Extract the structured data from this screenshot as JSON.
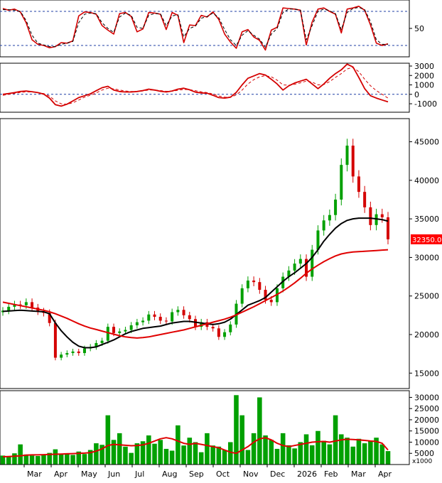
{
  "chart_data": [
    {
      "type": "line",
      "panel": "oscillator",
      "ylim": [
        0,
        100
      ],
      "ytick_labels": [
        "50"
      ],
      "ytick_values": [
        50
      ],
      "reference_lines": [
        80,
        20
      ],
      "series": [
        {
          "color": "#d40000",
          "values": [
            85,
            82,
            84,
            79,
            60,
            30,
            22,
            20,
            16,
            18,
            25,
            24,
            28,
            72,
            79,
            78,
            75,
            55,
            47,
            40,
            76,
            78,
            71,
            44,
            49,
            78,
            77,
            75,
            48,
            78,
            73,
            25,
            56,
            55,
            73,
            70,
            79,
            66,
            40,
            26,
            15,
            44,
            48,
            35,
            29,
            12,
            47,
            52,
            86,
            85,
            84,
            82,
            21,
            61,
            84,
            86,
            80,
            75,
            42,
            84,
            86,
            89,
            82,
            56,
            24,
            20,
            23
          ]
        },
        {
          "color": "#000000",
          "dashed": true,
          "values": [
            83,
            83,
            82,
            80,
            64,
            38,
            24,
            21,
            18,
            18,
            22,
            24,
            27,
            60,
            75,
            77,
            76,
            60,
            50,
            43,
            70,
            77,
            73,
            52,
            50,
            73,
            76,
            76,
            55,
            72,
            74,
            35,
            50,
            54,
            68,
            71,
            77,
            69,
            48,
            30,
            20,
            38,
            46,
            38,
            31,
            17,
            40,
            50,
            78,
            84,
            84,
            82,
            30,
            55,
            80,
            84,
            81,
            76,
            48,
            78,
            85,
            87,
            83,
            62,
            30,
            22,
            22
          ]
        }
      ]
    },
    {
      "type": "line",
      "panel": "macd",
      "ylim": [
        -1900,
        3300
      ],
      "ytick_labels": [
        "3000",
        "2000",
        "1000",
        "0",
        "-1000"
      ],
      "ytick_values": [
        3000,
        2000,
        1000,
        0,
        -1000
      ],
      "reference_lines": [
        0
      ],
      "series": [
        {
          "color": "#d40000",
          "values": [
            0,
            80,
            180,
            300,
            350,
            280,
            180,
            20,
            -400,
            -1100,
            -1250,
            -1050,
            -700,
            -350,
            -150,
            50,
            380,
            700,
            850,
            450,
            300,
            250,
            250,
            300,
            400,
            550,
            450,
            320,
            250,
            350,
            550,
            650,
            480,
            230,
            150,
            120,
            -100,
            -350,
            -400,
            -300,
            200,
            1000,
            1700,
            1950,
            2200,
            2050,
            1600,
            1100,
            450,
            900,
            1200,
            1400,
            1600,
            1100,
            600,
            1100,
            1700,
            2200,
            2600,
            3200,
            2900,
            1800,
            600,
            -150,
            -400,
            -600,
            -800
          ]
        },
        {
          "color": "#d40000",
          "dashed": true,
          "values": [
            -100,
            0,
            100,
            200,
            260,
            250,
            190,
            80,
            -200,
            -700,
            -1000,
            -1050,
            -900,
            -600,
            -300,
            -100,
            150,
            450,
            650,
            580,
            460,
            350,
            300,
            300,
            350,
            450,
            460,
            400,
            320,
            330,
            430,
            520,
            500,
            380,
            260,
            180,
            40,
            -180,
            -300,
            -320,
            -60,
            450,
            1100,
            1550,
            1850,
            1980,
            1850,
            1500,
            1000,
            960,
            1060,
            1220,
            1400,
            1300,
            1000,
            1040,
            1350,
            1800,
            2200,
            2700,
            2850,
            2400,
            1600,
            900,
            400,
            0,
            -400
          ]
        }
      ]
    },
    {
      "type": "candlestick",
      "panel": "price",
      "ylim": [
        13000,
        48000
      ],
      "ytick_labels": [
        "45000",
        "40000",
        "35000",
        "30000",
        "25000",
        "20000",
        "15000"
      ],
      "ytick_values": [
        45000,
        40000,
        35000,
        30000,
        25000,
        20000,
        15000
      ],
      "last_price_label": "32350.00",
      "last_price": 32350,
      "last_price_color": "#ff0000",
      "closes": [
        23100,
        23600,
        23900,
        23800,
        24200,
        23500,
        23000,
        22800,
        21500,
        17000,
        17400,
        17600,
        17800,
        17600,
        18200,
        18400,
        18900,
        19200,
        21000,
        20200,
        20400,
        20600,
        21200,
        21600,
        21800,
        22600,
        22300,
        21800,
        21700,
        22900,
        23200,
        22500,
        22000,
        21000,
        21600,
        21000,
        20800,
        19700,
        20300,
        21300,
        24000,
        26000,
        27000,
        26800,
        25800,
        24500,
        24200,
        26000,
        27500,
        28300,
        29200,
        29800,
        27500,
        31000,
        33500,
        34800,
        35500,
        37500,
        42000,
        44500,
        40500,
        38500,
        36500,
        34200,
        35600,
        35200,
        32350
      ],
      "moving_averages": [
        {
          "color": "#000000",
          "values": [
            23000,
            23050,
            23100,
            23150,
            23100,
            23050,
            23000,
            22950,
            22700,
            21500,
            20500,
            19700,
            19000,
            18500,
            18300,
            18300,
            18400,
            18700,
            19000,
            19300,
            19700,
            20100,
            20400,
            20600,
            20800,
            20900,
            21000,
            21100,
            21300,
            21500,
            21600,
            21700,
            21700,
            21600,
            21500,
            21400,
            21300,
            21400,
            21600,
            22000,
            22600,
            23200,
            23800,
            24100,
            24400,
            24800,
            25500,
            26200,
            26900,
            27500,
            28000,
            28600,
            29200,
            30000,
            31000,
            32100,
            33000,
            33800,
            34400,
            34800,
            35000,
            35100,
            35100,
            35100,
            35000,
            34900,
            34700
          ]
        },
        {
          "color": "#e00000",
          "values": [
            24200,
            24050,
            23900,
            23750,
            23600,
            23450,
            23300,
            23150,
            22950,
            22700,
            22400,
            22100,
            21750,
            21400,
            21100,
            20850,
            20650,
            20450,
            20250,
            20050,
            19850,
            19700,
            19600,
            19550,
            19600,
            19700,
            19850,
            20000,
            20150,
            20300,
            20450,
            20600,
            20800,
            21000,
            21200,
            21400,
            21600,
            21800,
            22000,
            22250,
            22550,
            22900,
            23250,
            23600,
            24000,
            24400,
            24800,
            25200,
            25650,
            26150,
            26700,
            27300,
            27950,
            28500,
            29000,
            29450,
            29850,
            30200,
            30450,
            30600,
            30700,
            30750,
            30800,
            30850,
            30900,
            30950,
            31000
          ]
        }
      ]
    },
    {
      "type": "bar",
      "panel": "volume",
      "ylim": [
        0,
        33000
      ],
      "ytick_labels": [
        "30000",
        "25000",
        "20000",
        "15000",
        "10000",
        "5000"
      ],
      "ytick_values": [
        30000,
        25000,
        20000,
        15000,
        10000,
        5000
      ],
      "unit_label": "x1000",
      "values": [
        4000,
        3500,
        5000,
        9000,
        4500,
        4000,
        3800,
        4200,
        5200,
        6800,
        4800,
        5100,
        4300,
        5800,
        4700,
        6500,
        9500,
        8800,
        22000,
        11000,
        14000,
        8000,
        5200,
        9500,
        10400,
        13000,
        9300,
        11000,
        7000,
        6200,
        17500,
        8500,
        12000,
        10000,
        5500,
        14000,
        8500,
        8000,
        6500,
        10000,
        31000,
        22000,
        6500,
        14000,
        30000,
        13000,
        11000,
        7000,
        14000,
        8600,
        7200,
        10000,
        13500,
        8600,
        15000,
        10600,
        9000,
        22000,
        13500,
        12000,
        8000,
        11500,
        9500,
        10700,
        12000,
        9000,
        6000
      ],
      "moving_average": {
        "color": "#e00000",
        "values": [
          3500,
          3600,
          3700,
          3900,
          4200,
          4300,
          4300,
          4400,
          4500,
          4600,
          4700,
          4800,
          4900,
          5000,
          5100,
          5300,
          6000,
          7000,
          8500,
          9000,
          8800,
          8600,
          8400,
          8500,
          8800,
          9500,
          10500,
          11500,
          12000,
          11500,
          10500,
          9500,
          9000,
          9500,
          9000,
          8500,
          8000,
          7500,
          6500,
          5500,
          5000,
          6500,
          8000,
          10000,
          11500,
          12000,
          11000,
          9500,
          8500,
          8000,
          8500,
          9000,
          9500,
          10000,
          10200,
          10300,
          10000,
          10500,
          11000,
          11300,
          11200,
          11000,
          10800,
          10500,
          10300,
          9500,
          6500
        ]
      }
    }
  ],
  "x_axis": {
    "labels": [
      "Mar",
      "Apr",
      "May",
      "Jun",
      "Jul",
      "Aug",
      "Sep",
      "Oct",
      "Nov",
      "Dec",
      "2026",
      "Feb",
      "Mar",
      "Apr"
    ]
  }
}
